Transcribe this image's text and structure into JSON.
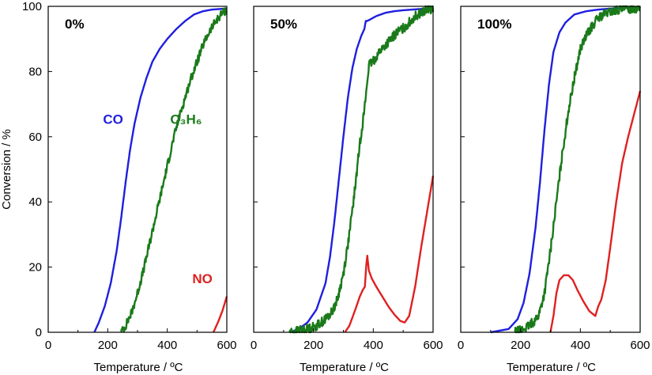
{
  "chart_data": [
    {
      "type": "line",
      "title": "0%",
      "xlabel": "Temperature / ºC",
      "ylabel": "Conversion / %",
      "xlim": [
        0,
        600
      ],
      "ylim": [
        0,
        100
      ],
      "xticks": [
        0,
        200,
        400,
        600
      ],
      "yticks": [
        0,
        20,
        40,
        60,
        80,
        100
      ],
      "series": [
        {
          "name": "CO",
          "color": "#1f1fe0",
          "label": "CO",
          "label_at": [
            218,
            64
          ],
          "x": [
            155,
            170,
            190,
            210,
            230,
            245,
            260,
            275,
            290,
            310,
            330,
            350,
            375,
            400,
            430,
            460,
            490,
            520,
            550,
            580,
            600
          ],
          "y": [
            0,
            3,
            8,
            15,
            25,
            35,
            46,
            56,
            64,
            72,
            78,
            83,
            87,
            90,
            93,
            95.5,
            97.5,
            98.5,
            99,
            99.2,
            99.3
          ]
        },
        {
          "name": "C3H6",
          "color": "#1a7a1a",
          "label": "C₃H₆",
          "label_at": [
            463,
            64
          ],
          "noise": 0.8,
          "x": [
            245,
            260,
            280,
            300,
            320,
            340,
            360,
            380,
            400,
            420,
            440,
            460,
            480,
            500,
            520,
            540,
            560,
            580,
            600
          ],
          "y": [
            0,
            2,
            6,
            12,
            19,
            27,
            35,
            43,
            51,
            59,
            66,
            72,
            78,
            83,
            88,
            92,
            95,
            97.5,
            99
          ]
        },
        {
          "name": "NO",
          "color": "#e02020",
          "label": "NO",
          "label_at": [
            518,
            15
          ],
          "x": [
            555,
            570,
            585,
            600
          ],
          "y": [
            0,
            3,
            6.5,
            11
          ]
        }
      ]
    },
    {
      "type": "line",
      "title": "50%",
      "xlabel": "Temperature / ºC",
      "ylabel": "",
      "xlim": [
        0,
        600
      ],
      "ylim": [
        0,
        100
      ],
      "xticks": [
        0,
        200,
        400,
        600
      ],
      "yticks": [
        0,
        20,
        40,
        60,
        80,
        100
      ],
      "series": [
        {
          "name": "CO",
          "color": "#1f1fe0",
          "label": "",
          "x": [
            120,
            150,
            180,
            210,
            240,
            255,
            270,
            285,
            300,
            315,
            330,
            345,
            360,
            370,
            375,
            380,
            390,
            410,
            440,
            470,
            500,
            530,
            560,
            600
          ],
          "y": [
            0,
            1,
            3,
            7,
            15,
            23,
            34,
            47,
            60,
            72,
            81,
            87,
            91,
            93,
            95.5,
            95.5,
            96,
            97,
            98,
            98.5,
            98.8,
            99,
            99.2,
            99.4
          ]
        },
        {
          "name": "C3H6",
          "color": "#1a7a1a",
          "label": "",
          "noise": 0.9,
          "x": [
            120,
            150,
            180,
            210,
            240,
            260,
            280,
            300,
            320,
            340,
            355,
            370,
            380,
            385,
            395,
            420,
            450,
            480,
            510,
            540,
            570,
            600
          ],
          "y": [
            0,
            0.5,
            1,
            2,
            4,
            6,
            10,
            18,
            30,
            45,
            58,
            68,
            77,
            82,
            82.5,
            86,
            89,
            92,
            94,
            97,
            98.5,
            99.5
          ]
        },
        {
          "name": "NO",
          "color": "#e02020",
          "label": "",
          "x": [
            305,
            320,
            340,
            355,
            365,
            372,
            376,
            380,
            385,
            395,
            410,
            430,
            450,
            470,
            490,
            505,
            520,
            540,
            560,
            580,
            600
          ],
          "y": [
            0,
            2,
            7,
            11,
            13,
            14,
            20,
            23.5,
            19,
            16.5,
            14,
            11,
            8,
            5.5,
            3.5,
            3,
            5,
            14,
            26,
            37,
            48
          ]
        }
      ]
    },
    {
      "type": "line",
      "title": "100%",
      "xlabel": "Temperature / ºC",
      "ylabel": "",
      "xlim": [
        0,
        600
      ],
      "ylim": [
        0,
        100
      ],
      "xticks": [
        0,
        200,
        400,
        600
      ],
      "yticks": [
        0,
        20,
        40,
        60,
        80,
        100
      ],
      "series": [
        {
          "name": "CO",
          "color": "#1f1fe0",
          "label": "",
          "x": [
            100,
            130,
            160,
            190,
            210,
            230,
            250,
            265,
            280,
            295,
            310,
            330,
            350,
            380,
            420,
            460,
            500,
            550,
            600
          ],
          "y": [
            0,
            0.5,
            1,
            4,
            9,
            18,
            32,
            46,
            62,
            76,
            86,
            92,
            95,
            97.5,
            98.5,
            99,
            99.3,
            99.5,
            99.6
          ]
        },
        {
          "name": "C3H6",
          "color": "#1a7a1a",
          "label": "",
          "noise": 0.9,
          "x": [
            180,
            200,
            230,
            260,
            280,
            300,
            320,
            340,
            360,
            380,
            400,
            420,
            440,
            460,
            490,
            520,
            560,
            600
          ],
          "y": [
            0,
            0.5,
            2,
            5,
            12,
            25,
            40,
            55,
            68,
            78,
            87,
            91,
            94,
            96.5,
            98,
            98.8,
            99.3,
            99.6
          ]
        },
        {
          "name": "NO",
          "color": "#e02020",
          "label": "",
          "x": [
            300,
            310,
            320,
            330,
            345,
            360,
            375,
            390,
            410,
            430,
            450,
            460,
            470,
            485,
            500,
            520,
            540,
            560,
            580,
            600
          ],
          "y": [
            0,
            5,
            12,
            16,
            17.5,
            17.5,
            16,
            13,
            9.5,
            6.5,
            5,
            8,
            10,
            16,
            26,
            40,
            52,
            60,
            67,
            74
          ]
        }
      ]
    }
  ]
}
